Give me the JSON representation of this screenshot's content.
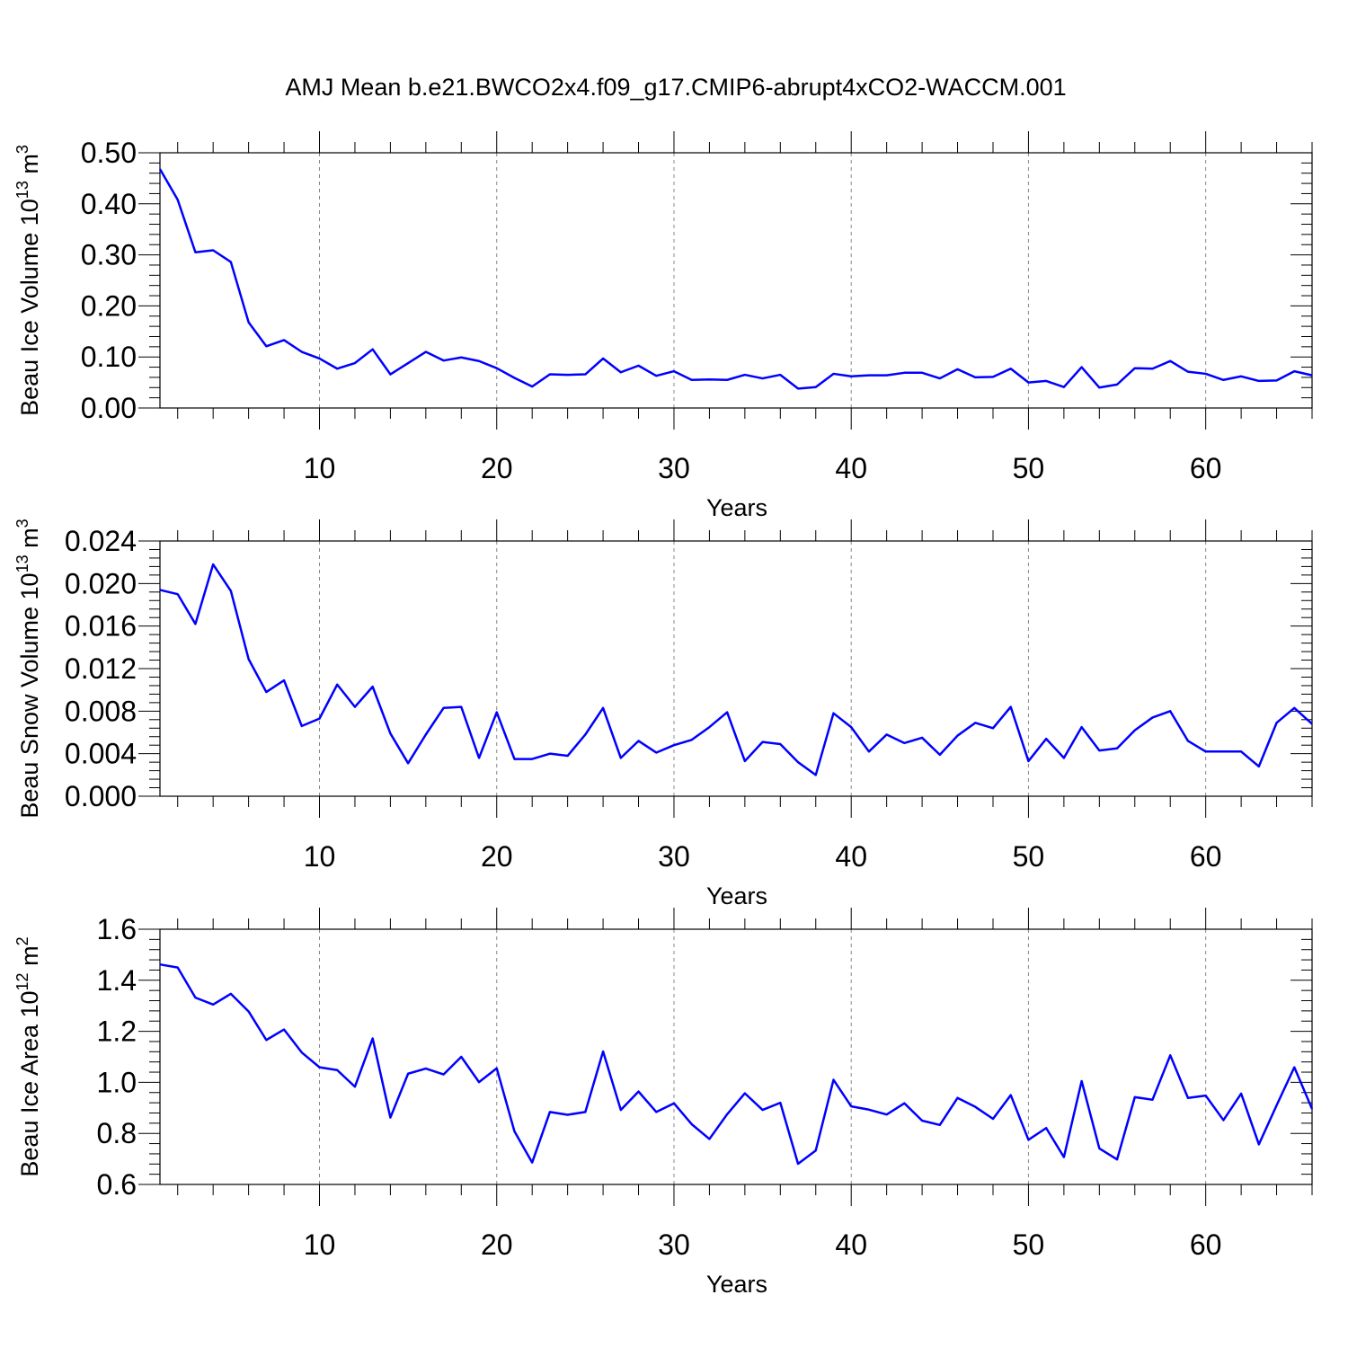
{
  "figure": {
    "title": "AMJ Mean b.e21.BWCO2x4.f09_g17.CMIP6-abrupt4xCO2-WACCM.001"
  },
  "colors": {
    "line": "#0000ff",
    "frame": "#000000",
    "grid": "#888888"
  },
  "chart_data": [
    {
      "type": "line",
      "xlabel": "Years",
      "ylabel": {
        "base": "Beau Ice Volume 10",
        "exponent": "13",
        "unit": " m",
        "unit_exponent": "3"
      },
      "xlim": [
        1,
        66
      ],
      "ylim": [
        0,
        0.5
      ],
      "x_ticks": [
        10,
        20,
        30,
        40,
        50,
        60
      ],
      "y_ticks": [
        "0.00",
        "0.10",
        "0.20",
        "0.30",
        "0.40",
        "0.50"
      ],
      "grid": "dashed vertical at major x ticks",
      "x": [
        1,
        2,
        3,
        4,
        5,
        6,
        7,
        8,
        9,
        10,
        11,
        12,
        13,
        14,
        15,
        16,
        17,
        18,
        19,
        20,
        21,
        22,
        23,
        24,
        25,
        26,
        27,
        28,
        29,
        30,
        31,
        32,
        33,
        34,
        35,
        36,
        37,
        38,
        39,
        40,
        41,
        42,
        43,
        44,
        45,
        46,
        47,
        48,
        49,
        50,
        51,
        52,
        53,
        54,
        55,
        56,
        57,
        58,
        59,
        60,
        61,
        62,
        63,
        64,
        65,
        66
      ],
      "series": [
        {
          "values": [
            0.468,
            0.408,
            0.305,
            0.309,
            0.286,
            0.168,
            0.121,
            0.133,
            0.11,
            0.097,
            0.077,
            0.088,
            0.115,
            0.066,
            0.088,
            0.11,
            0.093,
            0.099,
            0.092,
            0.078,
            0.059,
            0.042,
            0.066,
            0.065,
            0.066,
            0.097,
            0.07,
            0.083,
            0.063,
            0.072,
            0.055,
            0.056,
            0.055,
            0.065,
            0.058,
            0.065,
            0.038,
            0.041,
            0.067,
            0.062,
            0.064,
            0.064,
            0.069,
            0.069,
            0.058,
            0.076,
            0.06,
            0.061,
            0.077,
            0.05,
            0.053,
            0.041,
            0.08,
            0.04,
            0.046,
            0.078,
            0.077,
            0.092,
            0.071,
            0.067,
            0.055,
            0.062,
            0.053,
            0.054,
            0.072,
            0.064
          ]
        }
      ]
    },
    {
      "type": "line",
      "xlabel": "Years",
      "ylabel": {
        "base": "Beau Snow Volume 10",
        "exponent": "13",
        "unit": " m",
        "unit_exponent": "3"
      },
      "xlim": [
        1,
        66
      ],
      "ylim": [
        0,
        0.024
      ],
      "x_ticks": [
        10,
        20,
        30,
        40,
        50,
        60
      ],
      "y_ticks": [
        "0.000",
        "0.004",
        "0.008",
        "0.012",
        "0.016",
        "0.020",
        "0.024"
      ],
      "grid": "dashed vertical at major x ticks",
      "x": [
        1,
        2,
        3,
        4,
        5,
        6,
        7,
        8,
        9,
        10,
        11,
        12,
        13,
        14,
        15,
        16,
        17,
        18,
        19,
        20,
        21,
        22,
        23,
        24,
        25,
        26,
        27,
        28,
        29,
        30,
        31,
        32,
        33,
        34,
        35,
        36,
        37,
        38,
        39,
        40,
        41,
        42,
        43,
        44,
        45,
        46,
        47,
        48,
        49,
        50,
        51,
        52,
        53,
        54,
        55,
        56,
        57,
        58,
        59,
        60,
        61,
        62,
        63,
        64,
        65,
        66
      ],
      "series": [
        {
          "values": [
            0.0194,
            0.019,
            0.0162,
            0.0218,
            0.0193,
            0.0129,
            0.0098,
            0.0109,
            0.0066,
            0.0073,
            0.0105,
            0.0084,
            0.0103,
            0.0059,
            0.0031,
            0.0058,
            0.0083,
            0.0084,
            0.0036,
            0.0079,
            0.0035,
            0.0035,
            0.004,
            0.0038,
            0.0058,
            0.0083,
            0.0036,
            0.0052,
            0.0041,
            0.0048,
            0.0053,
            0.0065,
            0.0079,
            0.0033,
            0.0051,
            0.0049,
            0.0032,
            0.002,
            0.0078,
            0.0065,
            0.0042,
            0.0058,
            0.005,
            0.0055,
            0.0039,
            0.0057,
            0.0069,
            0.0064,
            0.0084,
            0.0033,
            0.0054,
            0.0036,
            0.0065,
            0.0043,
            0.0045,
            0.0062,
            0.0074,
            0.008,
            0.0052,
            0.0042,
            0.0042,
            0.0042,
            0.0028,
            0.0069,
            0.0083,
            0.0068
          ]
        }
      ]
    },
    {
      "type": "line",
      "xlabel": "Years",
      "ylabel": {
        "base": "Beau Ice Area 10",
        "exponent": "12",
        "unit": " m",
        "unit_exponent": "2"
      },
      "xlim": [
        1,
        66
      ],
      "ylim": [
        0.6,
        1.6
      ],
      "x_ticks": [
        10,
        20,
        30,
        40,
        50,
        60
      ],
      "y_ticks": [
        "0.6",
        "0.8",
        "1.0",
        "1.2",
        "1.4",
        "1.6"
      ],
      "grid": "dashed vertical at major x ticks",
      "x": [
        1,
        2,
        3,
        4,
        5,
        6,
        7,
        8,
        9,
        10,
        11,
        12,
        13,
        14,
        15,
        16,
        17,
        18,
        19,
        20,
        21,
        22,
        23,
        24,
        25,
        26,
        27,
        28,
        29,
        30,
        31,
        32,
        33,
        34,
        35,
        36,
        37,
        38,
        39,
        40,
        41,
        42,
        43,
        44,
        45,
        46,
        47,
        48,
        49,
        50,
        51,
        52,
        53,
        54,
        55,
        56,
        57,
        58,
        59,
        60,
        61,
        62,
        63,
        64,
        65,
        66
      ],
      "series": [
        {
          "values": [
            1.462,
            1.45,
            1.332,
            1.305,
            1.347,
            1.278,
            1.166,
            1.207,
            1.117,
            1.059,
            1.048,
            0.983,
            1.172,
            0.862,
            1.034,
            1.054,
            1.031,
            1.1,
            1.001,
            1.055,
            0.808,
            0.686,
            0.884,
            0.873,
            0.884,
            1.121,
            0.892,
            0.964,
            0.884,
            0.918,
            0.836,
            0.778,
            0.875,
            0.957,
            0.892,
            0.92,
            0.681,
            0.733,
            1.01,
            0.906,
            0.893,
            0.874,
            0.918,
            0.85,
            0.833,
            0.939,
            0.904,
            0.857,
            0.95,
            0.775,
            0.821,
            0.707,
            1.005,
            0.741,
            0.698,
            0.942,
            0.932,
            1.106,
            0.939,
            0.948,
            0.852,
            0.956,
            0.757,
            0.91,
            1.059,
            0.896
          ]
        }
      ]
    }
  ]
}
